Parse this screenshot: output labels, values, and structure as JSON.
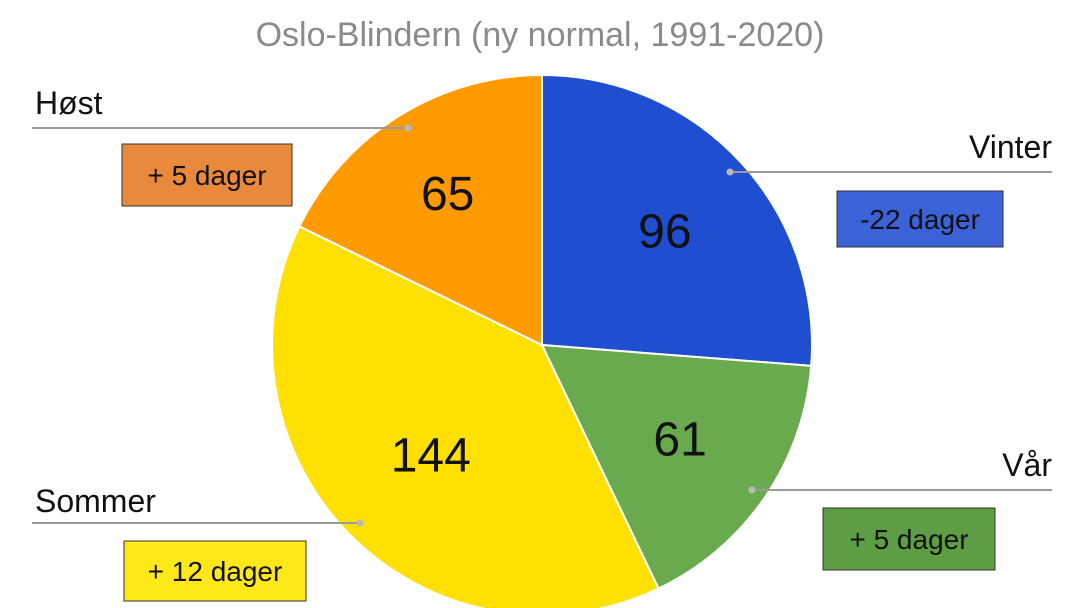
{
  "chart_data": {
    "type": "pie",
    "title": "Oslo-Blindern (ny normal, 1991-2020)",
    "slices": [
      {
        "name": "Vinter",
        "value": 96,
        "change": "-22 dager",
        "color": "#1f4fd0",
        "change_color": "#3b62d6"
      },
      {
        "name": "Vår",
        "value": 61,
        "change": "+ 5 dager",
        "color": "#6aaa4f",
        "change_color": "#5d9e45"
      },
      {
        "name": "Sommer",
        "value": 144,
        "change": "+ 12 dager",
        "color": "#ffe000",
        "change_color": "#ffe81a"
      },
      {
        "name": "Høst",
        "value": 65,
        "change": "+ 5 dager",
        "color": "#ff9a00",
        "change_color": "#e8893b"
      }
    ],
    "start_angle_deg": 0,
    "direction": "clockwise",
    "legend": "callouts"
  }
}
